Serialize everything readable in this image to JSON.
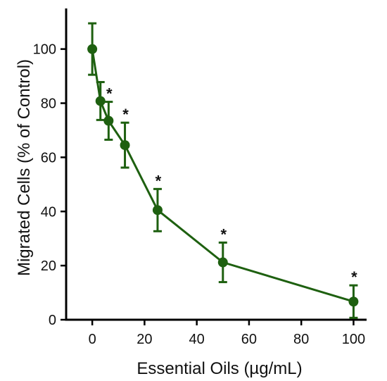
{
  "chart_data": {
    "type": "line",
    "title": "",
    "xlabel": "Essential Oils (µg/mL)",
    "ylabel": "Migrated Cells  (% of Control)",
    "xlim": [
      -10,
      105
    ],
    "ylim": [
      0,
      115
    ],
    "x_ticks": [
      0,
      20,
      40,
      60,
      80,
      100
    ],
    "y_ticks": [
      0,
      20,
      40,
      60,
      80,
      100
    ],
    "grid": false,
    "legend": "none",
    "series": [
      {
        "color": "#1e6010",
        "points": [
          {
            "x": 0,
            "y": 100,
            "error": 9.5,
            "significance": ""
          },
          {
            "x": 3.125,
            "y": 80.8,
            "error": 7,
            "significance": ""
          },
          {
            "x": 6.25,
            "y": 73.5,
            "error": 7,
            "significance": "*"
          },
          {
            "x": 12.5,
            "y": 64.5,
            "error": 8.3,
            "significance": "*"
          },
          {
            "x": 25,
            "y": 40.5,
            "error": 7.8,
            "significance": "*"
          },
          {
            "x": 50,
            "y": 21.2,
            "error": 7.3,
            "significance": "*"
          },
          {
            "x": 100,
            "y": 6.7,
            "error": 6,
            "significance": "*"
          }
        ]
      }
    ]
  }
}
